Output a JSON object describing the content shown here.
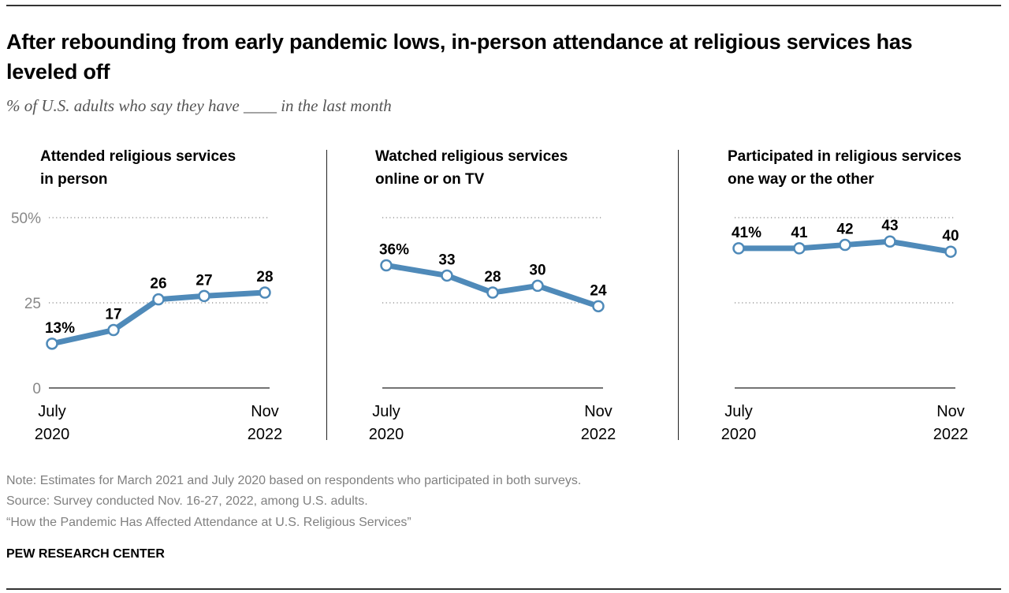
{
  "title": "After rebounding from early pandemic lows, in-person attendance at religious services has leveled off",
  "subtitle": "% of U.S. adults who say they have ____ in the last month",
  "notes": {
    "note": "Note: Estimates for March 2021 and July 2020 based on respondents who participated in both surveys.",
    "source": "Source: Survey conducted Nov. 16-27, 2022, among U.S. adults.",
    "report": "“How the Pandemic Has Affected Attendance at U.S. Religious Services”"
  },
  "brand": "PEW RESEARCH CENTER",
  "colors": {
    "line": "#4f8ab9",
    "marker_fill": "#ffffff",
    "grid": "#888888",
    "axis": "#222222",
    "tick_label": "#888888"
  },
  "chart_data": [
    {
      "type": "line",
      "title": "Attended religious services in person",
      "title_lines": [
        "Attended religious services",
        "in person"
      ],
      "x": [
        "July 2020",
        "",
        "",
        "",
        "Nov 2022"
      ],
      "x_tick_labels": [
        {
          "line1": "July",
          "line2": "2020"
        },
        {
          "line1": "Nov",
          "line2": "2022"
        }
      ],
      "values": [
        13,
        17,
        26,
        27,
        28
      ],
      "data_labels": [
        "13%",
        "17",
        "26",
        "27",
        "28"
      ],
      "ylim": [
        0,
        50
      ],
      "y_ticks": [
        0,
        25,
        50
      ],
      "y_tick_labels": [
        "0",
        "25",
        "50%"
      ],
      "grid": true,
      "show_y_labels": true
    },
    {
      "type": "line",
      "title": "Watched religious services online or on TV",
      "title_lines": [
        "Watched religious services",
        "online or on TV"
      ],
      "x": [
        "July 2020",
        "",
        "",
        "",
        "Nov 2022"
      ],
      "x_tick_labels": [
        {
          "line1": "July",
          "line2": "2020"
        },
        {
          "line1": "Nov",
          "line2": "2022"
        }
      ],
      "values": [
        36,
        33,
        28,
        30,
        24
      ],
      "data_labels": [
        "36%",
        "33",
        "28",
        "30",
        "24"
      ],
      "ylim": [
        0,
        50
      ],
      "y_ticks": [
        0,
        25,
        50
      ],
      "grid": true,
      "show_y_labels": false
    },
    {
      "type": "line",
      "title": "Participated in religious services one way or the other",
      "title_lines": [
        "Participated in religious services",
        "one way or the other"
      ],
      "x": [
        "July 2020",
        "",
        "",
        "",
        "Nov 2022"
      ],
      "x_tick_labels": [
        {
          "line1": "July",
          "line2": "2020"
        },
        {
          "line1": "Nov",
          "line2": "2022"
        }
      ],
      "values": [
        41,
        41,
        42,
        43,
        40
      ],
      "data_labels": [
        "41%",
        "41",
        "42",
        "43",
        "40"
      ],
      "ylim": [
        0,
        50
      ],
      "y_ticks": [
        0,
        25,
        50
      ],
      "grid": true,
      "show_y_labels": false
    }
  ]
}
